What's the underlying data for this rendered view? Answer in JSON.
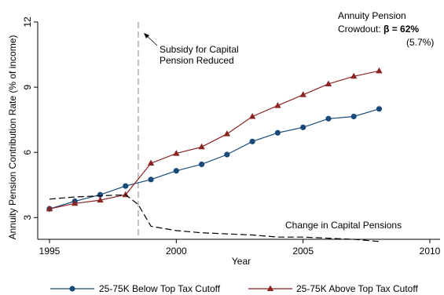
{
  "chart_data": {
    "type": "line",
    "ylabel": "Annuity Pension Contribution Rate (% of income)",
    "xlabel": "Year",
    "xlim": [
      1995,
      2010
    ],
    "ylim": [
      2,
      12
    ],
    "x_ticks": [
      1995,
      2000,
      2005,
      2010
    ],
    "y_ticks": [
      3,
      6,
      9,
      12
    ],
    "grid": false,
    "legend_position": "bottom",
    "series": [
      {
        "name": "25-75K Below Top Tax Cutoff",
        "color": "#1a4a7a",
        "marker": "circle",
        "x": [
          1995,
          1996,
          1997,
          1998,
          1999,
          2000,
          2001,
          2002,
          2003,
          2004,
          2005,
          2006,
          2007,
          2008
        ],
        "values": [
          3.4,
          3.75,
          4.05,
          4.45,
          4.75,
          5.15,
          5.45,
          5.9,
          6.5,
          6.9,
          7.15,
          7.55,
          7.65,
          8.0
        ]
      },
      {
        "name": "25-75K Above Top Tax Cutoff",
        "color": "#8b2323",
        "marker": "triangle",
        "x": [
          1995,
          1996,
          1997,
          1998,
          1999,
          2000,
          2001,
          2002,
          2003,
          2004,
          2005,
          2006,
          2007,
          2008
        ],
        "values": [
          3.4,
          3.65,
          3.8,
          4.05,
          5.5,
          5.95,
          6.25,
          6.85,
          7.65,
          8.15,
          8.65,
          9.15,
          9.5,
          9.75
        ]
      },
      {
        "label": "Change in Capital Pensions",
        "color": "#000000",
        "style": "dashed",
        "x": [
          1995,
          1996,
          1997,
          1998,
          1998.5,
          1999,
          2000,
          2001,
          2002,
          2003,
          2004,
          2005,
          2006,
          2007,
          2008
        ],
        "values": [
          3.85,
          3.95,
          4.0,
          4.05,
          3.6,
          2.6,
          2.4,
          2.3,
          2.25,
          2.2,
          2.1,
          2.1,
          2.05,
          2.0,
          1.9
        ]
      }
    ],
    "vline": {
      "x": 1998.5,
      "style": "dashed",
      "color": "#888888"
    },
    "annotations": {
      "subsidy": [
        "Subsidy for Capital",
        "Pension Reduced"
      ],
      "capital_label": "Change in Capital Pensions",
      "crowdout_title": "Annuity Pension",
      "crowdout_prefix": "Crowdout: ",
      "crowdout_beta": "β = 62%",
      "crowdout_se": "(5.7%)"
    }
  }
}
